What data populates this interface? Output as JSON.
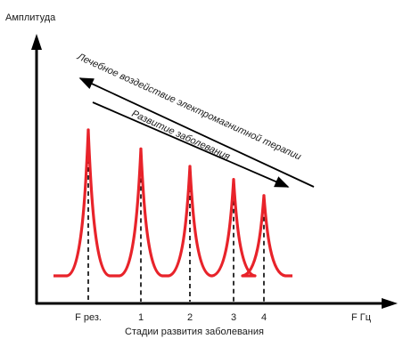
{
  "axes": {
    "y_label": "Амплитуда",
    "x_label": "F Гц",
    "x_caption": "Стадии развития заболевания"
  },
  "arrows": {
    "upper_label": "Лечебное воздействие электромагнитной терапии",
    "lower_label": "Развитие заболевания"
  },
  "stages": [
    {
      "label": "F рез.",
      "amplitude": 1.0
    },
    {
      "label": "1",
      "amplitude": 0.87
    },
    {
      "label": "2",
      "amplitude": 0.75
    },
    {
      "label": "3",
      "amplitude": 0.66
    },
    {
      "label": "4",
      "amplitude": 0.55
    }
  ],
  "colors": {
    "curve": "#e8232a",
    "axis": "#000000",
    "text": "#1a1a1a"
  }
}
